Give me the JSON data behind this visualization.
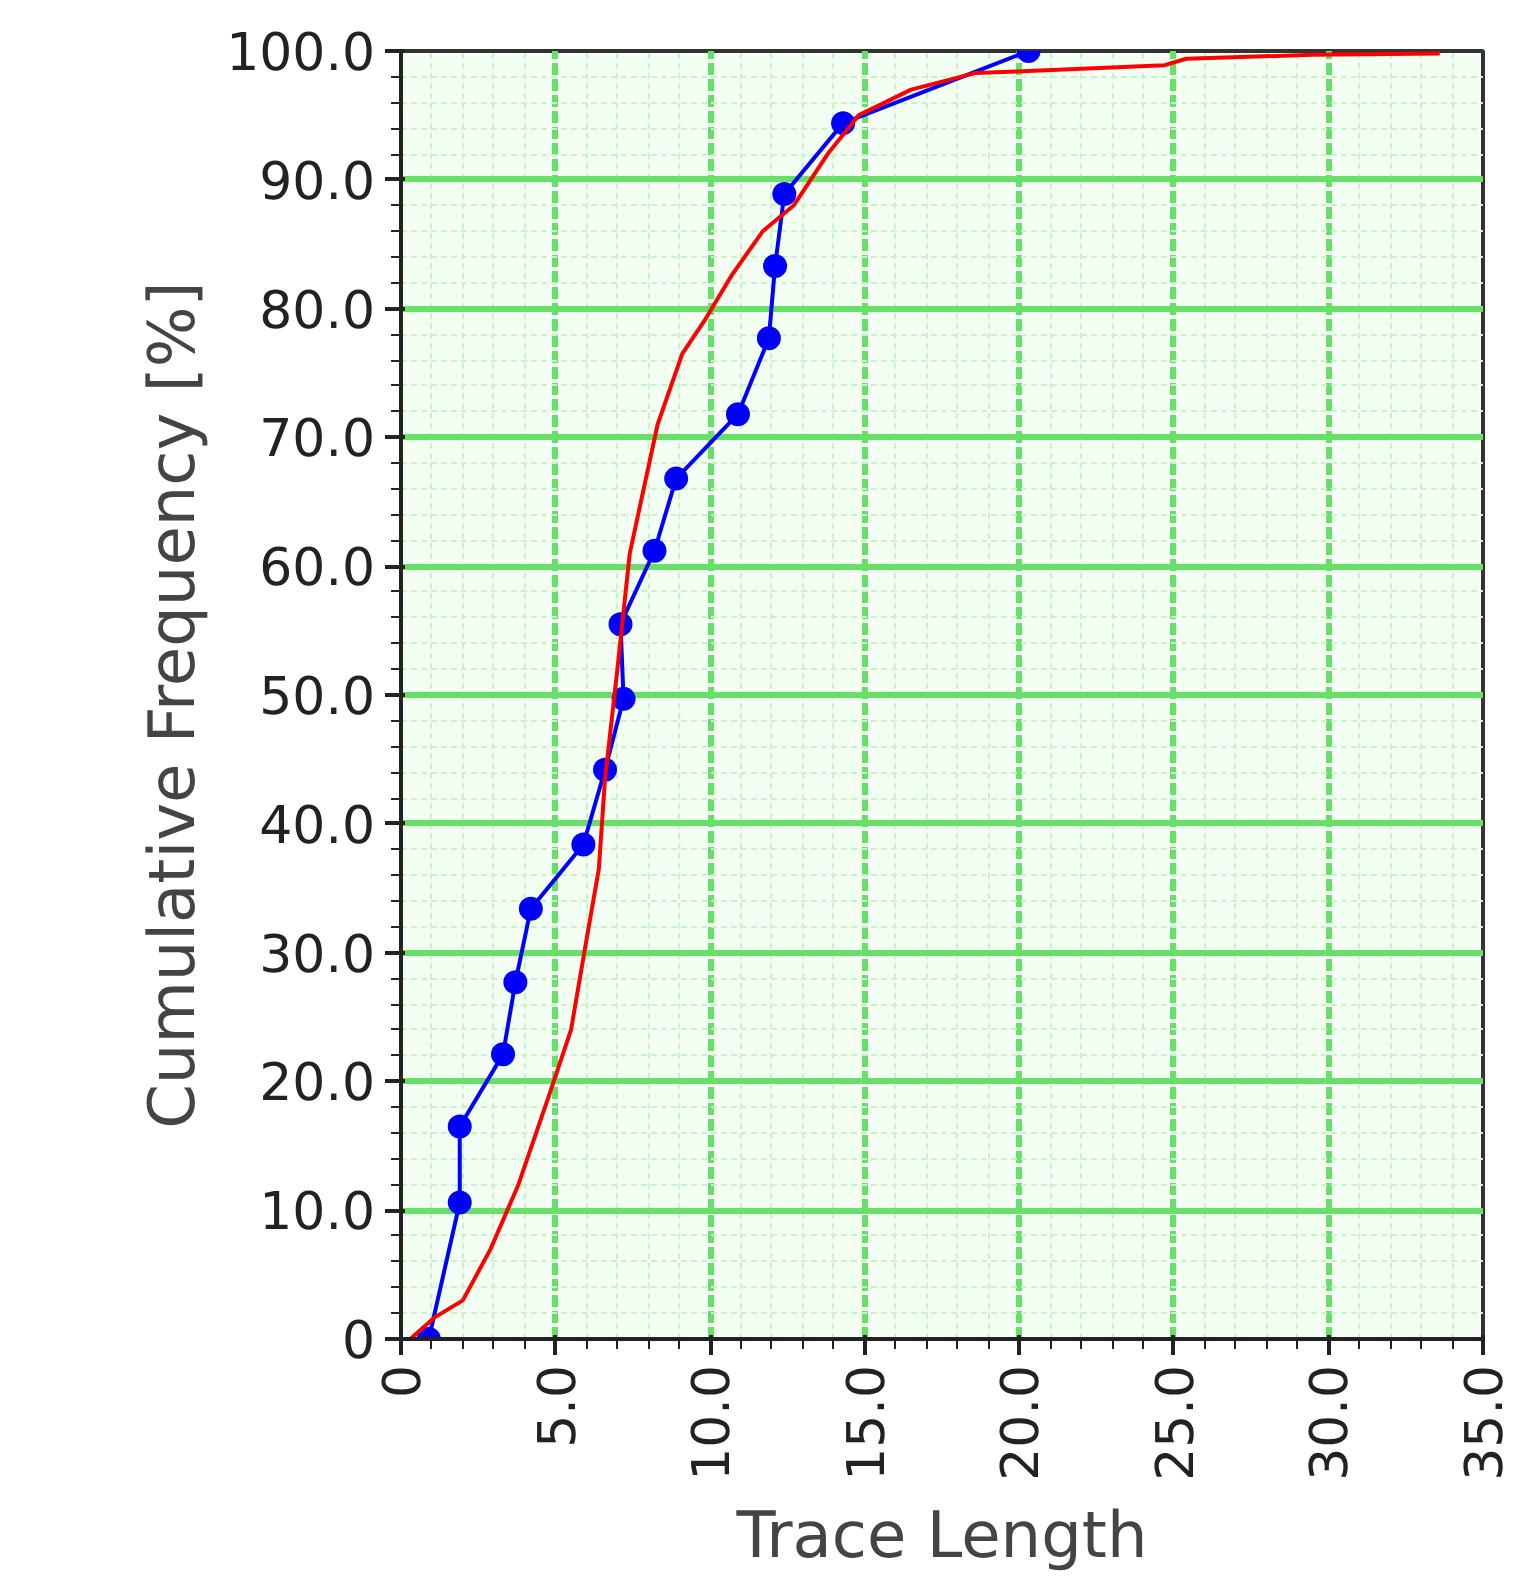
{
  "chart_data": {
    "type": "line",
    "xlabel": "Trace Length",
    "ylabel": "Cumulative Frequency  [%]",
    "xlim": [
      0,
      35
    ],
    "ylim": [
      0,
      100
    ],
    "xticks": [
      0,
      {
        "value": 1,
        "label": null
      },
      {
        "value": 2,
        "label": null
      },
      {
        "value": 3,
        "label": null
      },
      {
        "value": 4,
        "label": null
      },
      {
        "value": 5,
        "label": "5.0"
      },
      {
        "value": 6,
        "label": null
      },
      {
        "value": 7,
        "label": null
      },
      {
        "value": 8,
        "label": null
      },
      {
        "value": 9,
        "label": null
      },
      {
        "value": 10,
        "label": "10.0"
      },
      {
        "value": 11,
        "label": null
      },
      {
        "value": 12,
        "label": null
      },
      {
        "value": 13,
        "label": null
      },
      {
        "value": 14,
        "label": null
      },
      {
        "value": 15,
        "label": "15.0"
      },
      {
        "value": 16,
        "label": null
      },
      {
        "value": 17,
        "label": null
      },
      {
        "value": 18,
        "label": null
      },
      {
        "value": 19,
        "label": null
      },
      {
        "value": 20,
        "label": "20.0"
      },
      {
        "value": 21,
        "label": null
      },
      {
        "value": 22,
        "label": null
      },
      {
        "value": 23,
        "label": null
      },
      {
        "value": 24,
        "label": null
      },
      {
        "value": 25,
        "label": "25.0"
      },
      {
        "value": 26,
        "label": null
      },
      {
        "value": 27,
        "label": null
      },
      {
        "value": 28,
        "label": null
      },
      {
        "value": 29,
        "label": null
      },
      {
        "value": 30,
        "label": "30.0"
      },
      {
        "value": 31,
        "label": null
      },
      {
        "value": 32,
        "label": null
      },
      {
        "value": 33,
        "label": null
      },
      {
        "value": 34,
        "label": null
      },
      {
        "value": 35,
        "label": "35.0"
      }
    ],
    "yticks": [
      0,
      {
        "value": 2,
        "label": null
      },
      {
        "value": 4,
        "label": null
      },
      {
        "value": 6,
        "label": null
      },
      {
        "value": 8,
        "label": null
      },
      {
        "value": 10,
        "label": "10.0"
      },
      {
        "value": 12,
        "label": null
      },
      {
        "value": 14,
        "label": null
      },
      {
        "value": 16,
        "label": null
      },
      {
        "value": 18,
        "label": null
      },
      {
        "value": 20,
        "label": "20.0"
      },
      {
        "value": 22,
        "label": null
      },
      {
        "value": 24,
        "label": null
      },
      {
        "value": 26,
        "label": null
      },
      {
        "value": 28,
        "label": null
      },
      {
        "value": 30,
        "label": "30.0"
      },
      {
        "value": 32,
        "label": null
      },
      {
        "value": 34,
        "label": null
      },
      {
        "value": 36,
        "label": null
      },
      {
        "value": 38,
        "label": null
      },
      {
        "value": 40,
        "label": "40.0"
      },
      {
        "value": 42,
        "label": null
      },
      {
        "value": 44,
        "label": null
      },
      {
        "value": 46,
        "label": null
      },
      {
        "value": 48,
        "label": null
      },
      {
        "value": 50,
        "label": "50.0"
      },
      {
        "value": 52,
        "label": null
      },
      {
        "value": 54,
        "label": null
      },
      {
        "value": 56,
        "label": null
      },
      {
        "value": 58,
        "label": null
      },
      {
        "value": 60,
        "label": "60.0"
      },
      {
        "value": 62,
        "label": null
      },
      {
        "value": 64,
        "label": null
      },
      {
        "value": 66,
        "label": null
      },
      {
        "value": 68,
        "label": null
      },
      {
        "value": 70,
        "label": "70.0"
      },
      {
        "value": 72,
        "label": null
      },
      {
        "value": 74,
        "label": null
      },
      {
        "value": 76,
        "label": null
      },
      {
        "value": 78,
        "label": null
      },
      {
        "value": 80,
        "label": "80.0"
      },
      {
        "value": 82,
        "label": null
      },
      {
        "value": 84,
        "label": null
      },
      {
        "value": 86,
        "label": null
      },
      {
        "value": 88,
        "label": null
      },
      {
        "value": 90,
        "label": "90.0"
      },
      {
        "value": 92,
        "label": null
      },
      {
        "value": 94,
        "label": null
      },
      {
        "value": 96,
        "label": null
      },
      {
        "value": 98,
        "label": null
      },
      {
        "value": 100,
        "label": "100.0"
      }
    ],
    "grid": true,
    "series": [
      {
        "color": "#0000ff",
        "marker": "circle",
        "x": [
          0.9,
          1.9,
          1.9,
          3.3,
          3.7,
          4.2,
          5.9,
          6.6,
          7.2,
          7.1,
          8.2,
          8.9,
          10.9,
          11.9,
          12.1,
          12.4,
          14.3,
          20.3
        ],
        "values": [
          0,
          10.6,
          16.5,
          22.1,
          27.7,
          33.4,
          38.4,
          44.2,
          49.7,
          55.5,
          61.2,
          66.8,
          71.8,
          77.7,
          83.3,
          88.9,
          94.4,
          100
        ]
      },
      {
        "color": "#ff0000",
        "marker": "none",
        "x": [
          0.3,
          1.1,
          2.0,
          2.9,
          3.8,
          4.8,
          5.5,
          6.0,
          6.4,
          6.6,
          7.0,
          7.4,
          8.3,
          9.1,
          9.8,
          10.7,
          11.7,
          12.7,
          13.8,
          14.8,
          16.5,
          18.6,
          19.9,
          24.7,
          25.4,
          29.5,
          33.6
        ],
        "values": [
          0,
          1.7,
          3,
          7,
          12,
          19,
          24,
          31,
          36.5,
          43.5,
          52,
          61,
          71,
          76.5,
          79,
          82.6,
          86,
          88,
          92,
          95,
          97,
          98.3,
          98.4,
          98.9,
          99.4,
          99.7,
          99.8
        ]
      }
    ]
  }
}
